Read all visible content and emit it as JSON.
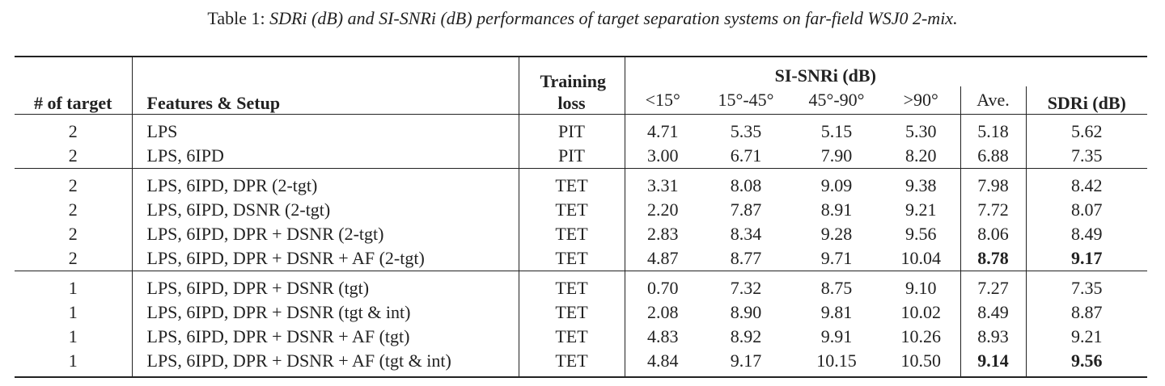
{
  "caption": {
    "label": "Table 1:",
    "text": "SDRi (dB) and SI-SNRi (dB) performances of target separation systems on far-field WSJ0 2-mix."
  },
  "table": {
    "header": {
      "target": "# of target",
      "setup": "Features & Setup",
      "loss": "Training loss",
      "si_snri": "SI-SNRi (dB)",
      "angles": [
        "<15°",
        "15°-45°",
        "45°-90°",
        ">90°"
      ],
      "average": "Ave.",
      "sdri": "SDRi (dB)"
    },
    "groups": [
      {
        "rows": [
          [
            "2",
            "LPS",
            "PIT",
            "4.71",
            "5.35",
            "5.15",
            "5.30",
            "5.18",
            "5.62"
          ],
          [
            "2",
            "LPS, 6IPD",
            "PIT",
            "3.00",
            "6.71",
            "7.90",
            "8.20",
            "6.88",
            "7.35"
          ]
        ]
      },
      {
        "rows": [
          [
            "2",
            "LPS, 6IPD, DPR (2-tgt)",
            "TET",
            "3.31",
            "8.08",
            "9.09",
            "9.38",
            "7.98",
            "8.42"
          ],
          [
            "2",
            "LPS, 6IPD, DSNR (2-tgt)",
            "TET",
            "2.20",
            "7.87",
            "8.91",
            "9.21",
            "7.72",
            "8.07"
          ],
          [
            "2",
            "LPS, 6IPD, DPR + DSNR (2-tgt)",
            "TET",
            "2.83",
            "8.34",
            "9.28",
            "9.56",
            "8.06",
            "8.49"
          ],
          [
            "2",
            "LPS, 6IPD, DPR + DSNR + AF (2-tgt)",
            "TET",
            "4.87",
            "8.77",
            "9.71",
            "10.04",
            "8.78",
            "9.17"
          ]
        ]
      },
      {
        "rows": [
          [
            "1",
            "LPS, 6IPD, DPR + DSNR (tgt)",
            "TET",
            "0.70",
            "7.32",
            "8.75",
            "9.10",
            "7.27",
            "7.35"
          ],
          [
            "1",
            "LPS, 6IPD, DPR + DSNR (tgt & int)",
            "TET",
            "2.08",
            "8.90",
            "9.81",
            "10.02",
            "8.49",
            "8.87"
          ],
          [
            "1",
            "LPS, 6IPD, DPR + DSNR + AF (tgt)",
            "TET",
            "4.83",
            "8.92",
            "9.91",
            "10.26",
            "8.93",
            "9.21"
          ],
          [
            "1",
            "LPS, 6IPD, DPR + DSNR + AF (tgt & int)",
            "TET",
            "4.84",
            "9.17",
            "10.15",
            "10.50",
            "9.14",
            "9.56"
          ]
        ]
      }
    ],
    "bold": [
      [
        1,
        3,
        7
      ],
      [
        1,
        3,
        8
      ],
      [
        2,
        3,
        7
      ],
      [
        2,
        3,
        8
      ]
    ]
  }
}
